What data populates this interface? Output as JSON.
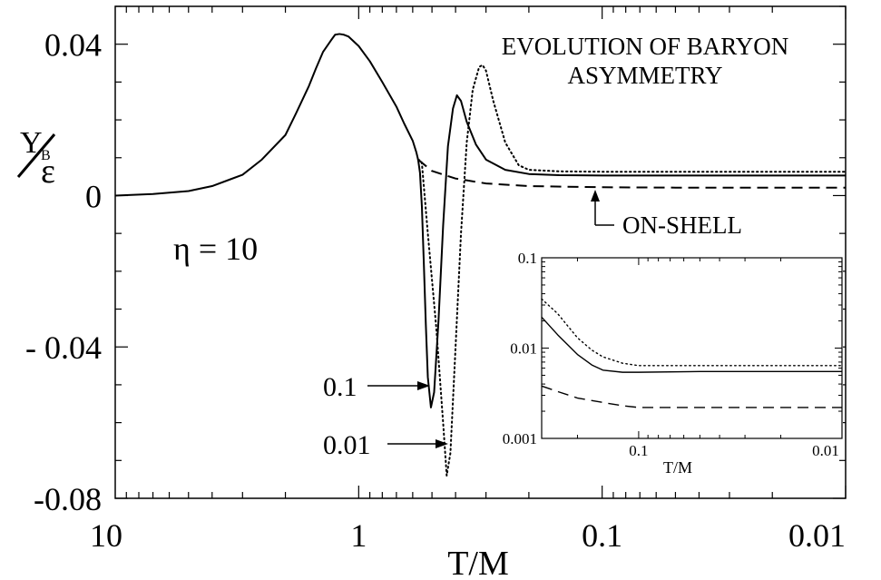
{
  "chart_data": [
    {
      "type": "line",
      "title": "EVOLUTION OF BARYON ASYMMETRY",
      "title_lines": [
        "EVOLUTION OF BARYON",
        "ASYMMETRY"
      ],
      "xlabel": "T/M",
      "ylabel_main": "Y",
      "ylabel_sub": "B",
      "ylabel_denominator": "ε",
      "x_scale": "log-reversed",
      "xlim": [
        10,
        0.01
      ],
      "ylim": [
        -0.08,
        0.05
      ],
      "x_ticks": [
        10,
        1,
        0.1,
        0.01
      ],
      "x_tick_labels": [
        "10",
        "1",
        "0.1",
        "0.01"
      ],
      "y_ticks": [
        0.04,
        0,
        -0.04,
        -0.08
      ],
      "y_tick_labels": [
        "0.04",
        "0",
        "- 0.04",
        "-0.08"
      ],
      "grid": false,
      "annotations": {
        "eta": "η = 10",
        "on_shell": "ON-SHELL",
        "solid_label": "0.1",
        "dotted_label": "0.01"
      },
      "series": [
        {
          "name": "0.1",
          "style": "solid",
          "points": [
            [
              10,
              0
            ],
            [
              7,
              0.0004
            ],
            [
              5,
              0.0012
            ],
            [
              4,
              0.0025
            ],
            [
              3,
              0.0055
            ],
            [
              2.5,
              0.0095
            ],
            [
              2,
              0.016
            ],
            [
              1.8,
              0.022
            ],
            [
              1.6,
              0.029
            ],
            [
              1.5,
              0.0335
            ],
            [
              1.4,
              0.038
            ],
            [
              1.3,
              0.041
            ],
            [
              1.25,
              0.0425
            ],
            [
              1.2,
              0.0427
            ],
            [
              1.15,
              0.0425
            ],
            [
              1.1,
              0.042
            ],
            [
              1.0,
              0.0395
            ],
            [
              0.9,
              0.0355
            ],
            [
              0.8,
              0.03
            ],
            [
              0.7,
              0.0235
            ],
            [
              0.65,
              0.019
            ],
            [
              0.6,
              0.0145
            ],
            [
              0.58,
              0.0115
            ],
            [
              0.57,
              0.0095
            ],
            [
              0.56,
              0.006
            ],
            [
              0.55,
              -0.003
            ],
            [
              0.54,
              -0.018
            ],
            [
              0.53,
              -0.034
            ],
            [
              0.52,
              -0.048
            ],
            [
              0.505,
              -0.056
            ],
            [
              0.49,
              -0.052
            ],
            [
              0.47,
              -0.033
            ],
            [
              0.45,
              -0.008
            ],
            [
              0.43,
              0.013
            ],
            [
              0.41,
              0.023
            ],
            [
              0.395,
              0.0265
            ],
            [
              0.38,
              0.025
            ],
            [
              0.36,
              0.0195
            ],
            [
              0.33,
              0.0135
            ],
            [
              0.3,
              0.0095
            ],
            [
              0.25,
              0.0068
            ],
            [
              0.2,
              0.0057
            ],
            [
              0.15,
              0.0054
            ],
            [
              0.1,
              0.0053
            ],
            [
              0.05,
              0.0053
            ],
            [
              0.01,
              0.0053
            ]
          ]
        },
        {
          "name": "0.01",
          "style": "dotted",
          "points": [
            [
              0.57,
              0.0095
            ],
            [
              0.555,
              0.0092
            ],
            [
              0.55,
              0.0085
            ],
            [
              0.52,
              -0.01
            ],
            [
              0.48,
              -0.035
            ],
            [
              0.45,
              -0.06
            ],
            [
              0.435,
              -0.074
            ],
            [
              0.42,
              -0.068
            ],
            [
              0.4,
              -0.04
            ],
            [
              0.38,
              -0.01
            ],
            [
              0.36,
              0.014
            ],
            [
              0.34,
              0.028
            ],
            [
              0.32,
              0.034
            ],
            [
              0.31,
              0.0345
            ],
            [
              0.3,
              0.033
            ],
            [
              0.28,
              0.025
            ],
            [
              0.25,
              0.014
            ],
            [
              0.22,
              0.008
            ],
            [
              0.2,
              0.0068
            ],
            [
              0.15,
              0.0064
            ],
            [
              0.1,
              0.0063
            ],
            [
              0.05,
              0.0063
            ],
            [
              0.01,
              0.0063
            ]
          ]
        },
        {
          "name": "ON-SHELL",
          "style": "dashed",
          "points": [
            [
              0.57,
              0.0095
            ],
            [
              0.5,
              0.0065
            ],
            [
              0.4,
              0.0045
            ],
            [
              0.3,
              0.0032
            ],
            [
              0.2,
              0.0025
            ],
            [
              0.1,
              0.0022
            ],
            [
              0.05,
              0.0021
            ],
            [
              0.01,
              0.0021
            ]
          ]
        }
      ]
    },
    {
      "type": "line",
      "role": "inset",
      "xlabel": "T/M",
      "x_scale": "log-reversed",
      "y_scale": "log",
      "xlim": [
        0.3,
        0.01
      ],
      "ylim": [
        0.001,
        0.1
      ],
      "x_ticks": [
        0.1,
        0.01
      ],
      "x_tick_labels": [
        "0.1",
        "0.01"
      ],
      "y_ticks": [
        0.1,
        0.01,
        0.001
      ],
      "y_tick_labels": [
        "0.1",
        "0.01",
        "0.001"
      ],
      "grid": false,
      "series": [
        {
          "name": "0.1",
          "style": "solid",
          "points": [
            [
              0.3,
              0.022
            ],
            [
              0.25,
              0.014
            ],
            [
              0.2,
              0.0085
            ],
            [
              0.17,
              0.0065
            ],
            [
              0.15,
              0.0057
            ],
            [
              0.12,
              0.0054
            ],
            [
              0.1,
              0.0054
            ],
            [
              0.05,
              0.0055
            ],
            [
              0.01,
              0.0055
            ]
          ]
        },
        {
          "name": "0.01",
          "style": "dotted",
          "points": [
            [
              0.3,
              0.035
            ],
            [
              0.25,
              0.024
            ],
            [
              0.2,
              0.013
            ],
            [
              0.17,
              0.0095
            ],
            [
              0.15,
              0.008
            ],
            [
              0.12,
              0.0068
            ],
            [
              0.1,
              0.0064
            ],
            [
              0.05,
              0.0064
            ],
            [
              0.01,
              0.0064
            ]
          ]
        },
        {
          "name": "ON-SHELL",
          "style": "dashed",
          "points": [
            [
              0.3,
              0.0038
            ],
            [
              0.25,
              0.0033
            ],
            [
              0.2,
              0.0028
            ],
            [
              0.15,
              0.0025
            ],
            [
              0.12,
              0.0023
            ],
            [
              0.1,
              0.0022
            ],
            [
              0.05,
              0.0022
            ],
            [
              0.01,
              0.0022
            ]
          ]
        }
      ]
    }
  ]
}
